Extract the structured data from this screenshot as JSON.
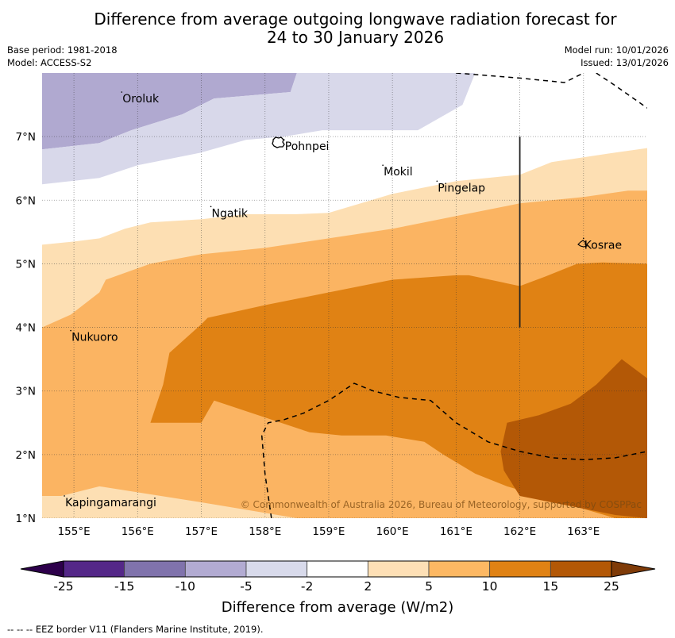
{
  "header": {
    "title_line1": "Difference from average outgoing longwave radiation forecast for",
    "title_line2": "24 to 30 January 2026",
    "base_period": "Base period: 1981-2018",
    "model": "Model: ACCESS-S2",
    "model_run": "Model run: 10/01/2026",
    "issued": "Issued: 13/01/2026"
  },
  "map": {
    "extent": {
      "lon_min": 154.5,
      "lon_max": 164.0,
      "lat_min": 1.0,
      "lat_max": 8.0
    },
    "lon_ticks": [
      "155°E",
      "156°E",
      "157°E",
      "158°E",
      "159°E",
      "160°E",
      "161°E",
      "162°E",
      "163°E"
    ],
    "lon_values": [
      155,
      156,
      157,
      158,
      159,
      160,
      161,
      162,
      163
    ],
    "lat_ticks": [
      "7°N",
      "6°N",
      "5°N",
      "4°N",
      "3°N",
      "2°N",
      "1°N"
    ],
    "lat_values": [
      7,
      6,
      5,
      4,
      3,
      2,
      1
    ],
    "places": [
      {
        "name": "Oroluk",
        "lon": 155.75,
        "lat": 7.6
      },
      {
        "name": "Pohnpei",
        "lon": 158.3,
        "lat": 6.85
      },
      {
        "name": "Mokil",
        "lon": 159.85,
        "lat": 6.45
      },
      {
        "name": "Pingelap",
        "lon": 160.7,
        "lat": 6.2
      },
      {
        "name": "Ngatik",
        "lon": 157.15,
        "lat": 5.8
      },
      {
        "name": "Kosrae",
        "lon": 163.0,
        "lat": 5.3
      },
      {
        "name": "Nukuoro",
        "lon": 154.95,
        "lat": 3.85
      },
      {
        "name": "Kapingamarangi",
        "lon": 154.85,
        "lat": 1.25
      }
    ],
    "copyright": "© Commonwealth of Australia 2026, Bureau of Meteorology, supported by COSPPac",
    "contour_bands": [
      {
        "range": "-15 to -10",
        "color": "#b0a9d0",
        "poly": [
          [
            154.5,
            8.0
          ],
          [
            158.5,
            8.0
          ],
          [
            158.4,
            7.7
          ],
          [
            157.2,
            7.6
          ],
          [
            156.7,
            7.35
          ],
          [
            155.9,
            7.1
          ],
          [
            155.4,
            6.9
          ],
          [
            154.5,
            6.8
          ]
        ]
      },
      {
        "range": "-10 to -5",
        "color": "#d8d8ea",
        "poly": [
          [
            158.5,
            8.0
          ],
          [
            161.3,
            8.0
          ],
          [
            161.1,
            7.5
          ],
          [
            160.4,
            7.1
          ],
          [
            159.5,
            7.1
          ],
          [
            158.9,
            7.1
          ],
          [
            158.3,
            7.0
          ],
          [
            157.7,
            6.95
          ],
          [
            157.0,
            6.75
          ],
          [
            156.0,
            6.55
          ],
          [
            155.4,
            6.35
          ],
          [
            154.5,
            6.25
          ],
          [
            154.5,
            6.8
          ],
          [
            155.4,
            6.9
          ],
          [
            155.9,
            7.1
          ],
          [
            156.7,
            7.35
          ],
          [
            157.2,
            7.6
          ],
          [
            158.4,
            7.7
          ]
        ]
      },
      {
        "range": "2 to 5",
        "color": "#fddfb3",
        "poly": [
          [
            154.5,
            5.3
          ],
          [
            154.5,
            1.0
          ],
          [
            164.0,
            1.0
          ],
          [
            164.0,
            6.82
          ],
          [
            163.5,
            6.75
          ],
          [
            162.5,
            6.6
          ],
          [
            162.0,
            6.4
          ],
          [
            161.0,
            6.3
          ],
          [
            160.0,
            6.1
          ],
          [
            159.5,
            5.95
          ],
          [
            159.0,
            5.8
          ],
          [
            158.5,
            5.78
          ],
          [
            157.7,
            5.78
          ],
          [
            157.0,
            5.7
          ],
          [
            156.2,
            5.65
          ],
          [
            155.8,
            5.55
          ],
          [
            155.4,
            5.4
          ],
          [
            155.0,
            5.35
          ]
        ]
      },
      {
        "range": "5 to 10",
        "color": "#fbb462",
        "poly": [
          [
            154.5,
            4.0
          ],
          [
            154.95,
            4.2
          ],
          [
            155.4,
            4.55
          ],
          [
            155.5,
            4.75
          ],
          [
            156.2,
            5.0
          ],
          [
            157.0,
            5.15
          ],
          [
            158.0,
            5.25
          ],
          [
            159.0,
            5.4
          ],
          [
            160.0,
            5.55
          ],
          [
            161.0,
            5.75
          ],
          [
            162.0,
            5.95
          ],
          [
            163.0,
            6.05
          ],
          [
            163.7,
            6.15
          ],
          [
            164.0,
            6.15
          ],
          [
            164.0,
            1.0
          ],
          [
            158.5,
            1.0
          ],
          [
            157.0,
            1.25
          ],
          [
            155.4,
            1.5
          ],
          [
            154.8,
            1.35
          ],
          [
            154.5,
            1.35
          ]
        ]
      },
      {
        "range": "10 to 15",
        "color": "#e08214",
        "poly": [
          [
            156.2,
            2.5
          ],
          [
            156.4,
            3.1
          ],
          [
            156.5,
            3.6
          ],
          [
            157.0,
            4.05
          ],
          [
            157.1,
            4.15
          ],
          [
            158.0,
            4.35
          ],
          [
            159.0,
            4.55
          ],
          [
            160.0,
            4.75
          ],
          [
            161.0,
            4.82
          ],
          [
            161.2,
            4.82
          ],
          [
            162.0,
            4.65
          ],
          [
            162.4,
            4.8
          ],
          [
            162.9,
            5.0
          ],
          [
            163.3,
            5.02
          ],
          [
            164.0,
            5.0
          ],
          [
            164.0,
            1.0
          ],
          [
            163.5,
            1.0
          ],
          [
            161.8,
            1.5
          ],
          [
            161.3,
            1.7
          ],
          [
            160.8,
            2.0
          ],
          [
            160.5,
            2.2
          ],
          [
            159.9,
            2.3
          ],
          [
            159.2,
            2.3
          ],
          [
            158.7,
            2.35
          ],
          [
            158.4,
            2.45
          ],
          [
            157.8,
            2.65
          ],
          [
            157.2,
            2.85
          ],
          [
            157.0,
            2.5
          ],
          [
            156.4,
            2.5
          ]
        ]
      },
      {
        "range": "15 to 25",
        "color": "#b35806",
        "poly": [
          [
            161.8,
            2.5
          ],
          [
            161.7,
            2.05
          ],
          [
            161.75,
            1.75
          ],
          [
            162.0,
            1.35
          ],
          [
            163.5,
            1.05
          ],
          [
            164.0,
            1.0
          ],
          [
            164.0,
            3.2
          ],
          [
            163.6,
            3.5
          ],
          [
            163.2,
            3.1
          ],
          [
            162.8,
            2.8
          ],
          [
            162.3,
            2.62
          ]
        ]
      }
    ],
    "eez_border": [
      [
        [
          161.0,
          8.0
        ],
        [
          162.0,
          7.92
        ],
        [
          162.7,
          7.85
        ],
        [
          163.0,
          8.0
        ]
      ],
      [
        [
          163.2,
          8.0
        ],
        [
          163.5,
          7.8
        ],
        [
          164.0,
          7.45
        ]
      ],
      [
        [
          158.1,
          1.0
        ],
        [
          158.0,
          1.7
        ],
        [
          157.95,
          2.3
        ],
        [
          158.05,
          2.5
        ],
        [
          158.3,
          2.55
        ],
        [
          158.6,
          2.65
        ],
        [
          159.0,
          2.85
        ],
        [
          159.4,
          3.12
        ],
        [
          159.7,
          3.0
        ],
        [
          160.1,
          2.9
        ],
        [
          160.6,
          2.85
        ],
        [
          161.0,
          2.5
        ],
        [
          161.5,
          2.2
        ],
        [
          162.0,
          2.05
        ],
        [
          162.5,
          1.95
        ],
        [
          163.0,
          1.92
        ],
        [
          163.5,
          1.95
        ],
        [
          164.0,
          2.05
        ]
      ]
    ],
    "solid_line": [
      [
        162.0,
        7.0
      ],
      [
        162.0,
        4.0
      ]
    ]
  },
  "colorbar": {
    "title": "Difference from average (W/m2)",
    "labels": [
      "-25",
      "-15",
      "-10",
      "-5",
      "-2",
      "2",
      "5",
      "10",
      "15",
      "25"
    ],
    "colors": [
      "#542788",
      "#8073ac",
      "#b2abd2",
      "#d8daeb",
      "#ffffff",
      "#fee0b6",
      "#fdb863",
      "#e08214",
      "#b35806"
    ],
    "under_color": "#2d004b",
    "over_color": "#7f3b08"
  },
  "footnote": "--  --  -- EEZ border V11 (Flanders Marine Institute, 2019)."
}
